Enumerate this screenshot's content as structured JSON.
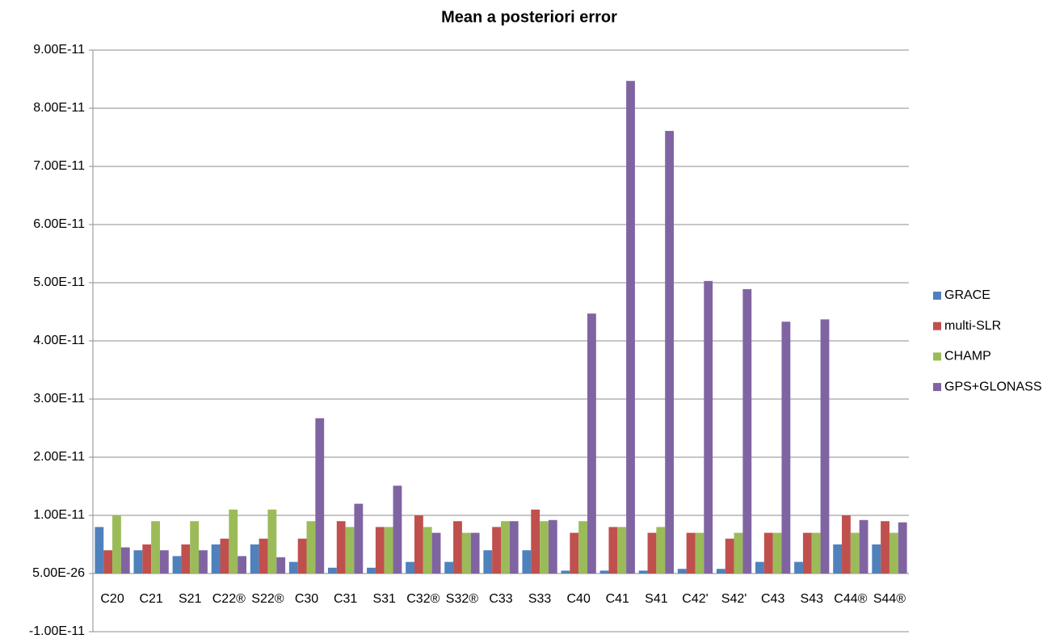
{
  "chart_data": {
    "type": "bar",
    "title": "Mean a posteriori error",
    "categories": [
      "C20",
      "C21",
      "S21",
      "C22®",
      "S22®",
      "C30",
      "C31",
      "S31",
      "C32®",
      "S32®",
      "C33",
      "S33",
      "C40",
      "C41",
      "S41",
      "C42'",
      "S42'",
      "C43",
      "S43",
      "C44®",
      "S44®"
    ],
    "series": [
      {
        "name": "GRACE",
        "color": "#4f81bd",
        "values": [
          8e-12,
          4e-12,
          3e-12,
          5e-12,
          5e-12,
          2e-12,
          1e-12,
          1e-12,
          2e-12,
          2e-12,
          4e-12,
          4e-12,
          5e-13,
          5e-13,
          5e-13,
          8e-13,
          8e-13,
          2e-12,
          2e-12,
          5e-12,
          5e-12
        ]
      },
      {
        "name": "multi-SLR",
        "color": "#c0504d",
        "values": [
          4e-12,
          5e-12,
          5e-12,
          6e-12,
          6e-12,
          6e-12,
          9e-12,
          8e-12,
          1e-11,
          9e-12,
          8e-12,
          1.1e-11,
          7e-12,
          8e-12,
          7e-12,
          7e-12,
          6e-12,
          7e-12,
          7e-12,
          1e-11,
          9e-12
        ]
      },
      {
        "name": "CHAMP",
        "color": "#9bbb59",
        "values": [
          1e-11,
          9e-12,
          9e-12,
          1.1e-11,
          1.1e-11,
          9e-12,
          8e-12,
          8e-12,
          8e-12,
          7e-12,
          9e-12,
          9e-12,
          9e-12,
          8e-12,
          8e-12,
          7e-12,
          7e-12,
          7e-12,
          7e-12,
          7e-12,
          7e-12
        ]
      },
      {
        "name": "GPS+GLONASS",
        "color": "#8064a2",
        "values": [
          4.5e-12,
          4e-12,
          4e-12,
          3e-12,
          2.8e-12,
          2.67e-11,
          1.2e-11,
          1.51e-11,
          7e-12,
          7e-12,
          9e-12,
          9.2e-12,
          4.47e-11,
          8.47e-11,
          7.61e-11,
          5.03e-11,
          4.89e-11,
          4.33e-11,
          4.37e-11,
          9.2e-12,
          8.8e-12
        ]
      }
    ],
    "ylim": [
      -1e-11,
      9e-11
    ],
    "yticks": [
      {
        "value": -1e-11,
        "label": "-1.00E-11"
      },
      {
        "value": 5e-26,
        "label": "5.00E-26"
      },
      {
        "value": 1e-11,
        "label": "1.00E-11"
      },
      {
        "value": 2e-11,
        "label": "2.00E-11"
      },
      {
        "value": 3e-11,
        "label": "3.00E-11"
      },
      {
        "value": 4e-11,
        "label": "4.00E-11"
      },
      {
        "value": 5e-11,
        "label": "5.00E-11"
      },
      {
        "value": 6e-11,
        "label": "6.00E-11"
      },
      {
        "value": 7e-11,
        "label": "7.00E-11"
      },
      {
        "value": 8e-11,
        "label": "8.00E-11"
      },
      {
        "value": 9e-11,
        "label": "9.00E-11"
      }
    ],
    "grid": true,
    "legend": "right"
  }
}
